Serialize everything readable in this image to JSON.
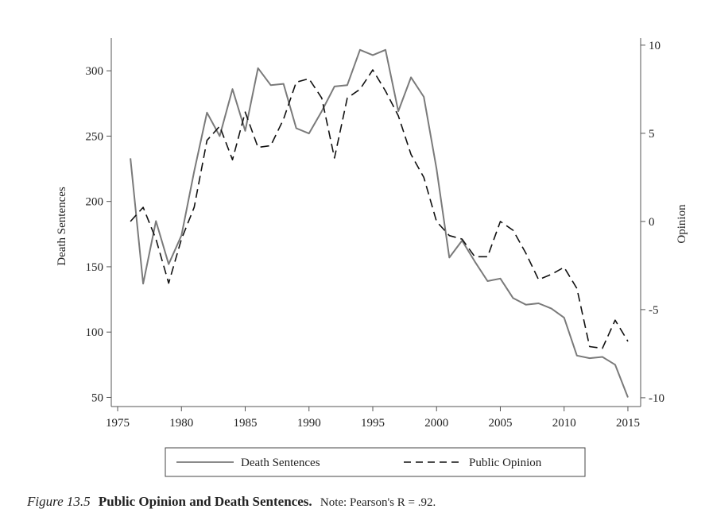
{
  "chart_data": {
    "type": "line",
    "x_ticks": [
      1975,
      1980,
      1985,
      1990,
      1995,
      2000,
      2005,
      2010,
      2015
    ],
    "xlim": [
      1974.5,
      2016
    ],
    "y_left": {
      "label": "Death Sentences",
      "ticks": [
        50,
        100,
        150,
        200,
        250,
        300
      ],
      "lim": [
        43,
        325
      ]
    },
    "y_right": {
      "label": "Opinion",
      "ticks": [
        -10,
        -5,
        0,
        5,
        10
      ],
      "tick_labels": [
        "-10",
        "-5",
        "0",
        "5",
        "10"
      ],
      "lim": [
        -10.5,
        10.4
      ]
    },
    "series": [
      {
        "name": "Death Sentences",
        "axis": "left",
        "style": "solid",
        "color": "#7a7a7a",
        "x": [
          1976,
          1977,
          1978,
          1979,
          1980,
          1981,
          1982,
          1983,
          1984,
          1985,
          1986,
          1987,
          1988,
          1989,
          1990,
          1991,
          1992,
          1993,
          1994,
          1995,
          1996,
          1997,
          1998,
          1999,
          2000,
          2001,
          2002,
          2003,
          2004,
          2005,
          2006,
          2007,
          2008,
          2009,
          2010,
          2011,
          2012,
          2013,
          2014,
          2015
        ],
        "values": [
          233,
          137,
          185,
          152,
          174,
          223,
          268,
          250,
          286,
          254,
          302,
          289,
          290,
          256,
          252,
          269,
          288,
          289,
          316,
          312,
          316,
          269,
          295,
          280,
          225,
          157,
          170,
          154,
          139,
          141,
          126,
          121,
          122,
          118,
          111,
          82,
          80,
          81,
          75,
          50
        ]
      },
      {
        "name": "Public Opinion",
        "axis": "right",
        "style": "dashed",
        "color": "#111111",
        "x": [
          1976,
          1977,
          1978,
          1979,
          1980,
          1981,
          1982,
          1983,
          1984,
          1985,
          1986,
          1987,
          1988,
          1989,
          1990,
          1991,
          1992,
          1993,
          1994,
          1995,
          1996,
          1997,
          1998,
          1999,
          2000,
          2001,
          2002,
          2003,
          2004,
          2005,
          2006,
          2007,
          2008,
          2009,
          2010,
          2011,
          2012,
          2013,
          2014,
          2015
        ],
        "values": [
          0,
          0.8,
          -1,
          -3.5,
          -1,
          0.8,
          4.6,
          5.4,
          3.5,
          6.2,
          4.2,
          4.3,
          5.8,
          7.9,
          8.1,
          7,
          3.6,
          7,
          7.5,
          8.6,
          7.4,
          6,
          3.8,
          2.5,
          0,
          -0.8,
          -1,
          -2,
          -2,
          0,
          -0.5,
          -1.8,
          -3.3,
          -3,
          -2.6,
          -3.8,
          -7.1,
          -7.2,
          -5.6,
          -6.8
        ]
      }
    ],
    "legend": {
      "placement": "bottom",
      "entries": [
        "Death Sentences",
        "Public Opinion"
      ]
    }
  },
  "caption": {
    "figure_label": "Figure 13.5",
    "title": "Public Opinion and Death Sentences.",
    "note": "Note: Pearson's R = .92."
  }
}
